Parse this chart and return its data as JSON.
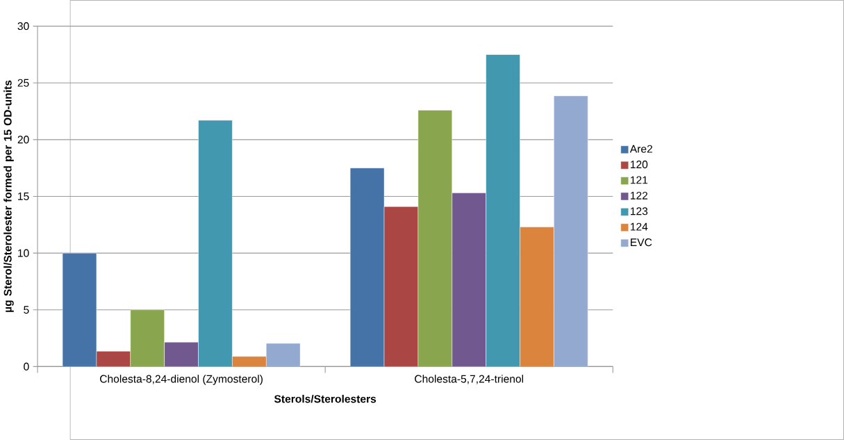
{
  "chart_data": {
    "type": "bar",
    "xlabel": "Sterols/Sterolesters",
    "ylabel": "µg Sterol/Sterolester formed per 15 OD-units",
    "categories": [
      "Cholesta-8,24-dienol (Zymosterol)",
      "Cholesta-5,7,24-trienol"
    ],
    "series": [
      {
        "name": "Are2",
        "color": "#4572a7",
        "values": [
          10.0,
          17.5
        ]
      },
      {
        "name": "120",
        "color": "#aa4643",
        "values": [
          1.35,
          14.1
        ]
      },
      {
        "name": "121",
        "color": "#89a54e",
        "values": [
          5.0,
          22.6
        ]
      },
      {
        "name": "122",
        "color": "#71588f",
        "values": [
          2.15,
          15.3
        ]
      },
      {
        "name": "123",
        "color": "#4198af",
        "values": [
          21.7,
          27.5
        ]
      },
      {
        "name": "124",
        "color": "#db843d",
        "values": [
          0.9,
          12.3
        ]
      },
      {
        "name": "EVC",
        "color": "#93a9cf",
        "values": [
          2.05,
          23.85
        ]
      }
    ],
    "ylim": [
      0,
      30
    ],
    "yticks": [
      0,
      5,
      10,
      15,
      20,
      25,
      30
    ],
    "grid": "y",
    "legend": "right"
  }
}
